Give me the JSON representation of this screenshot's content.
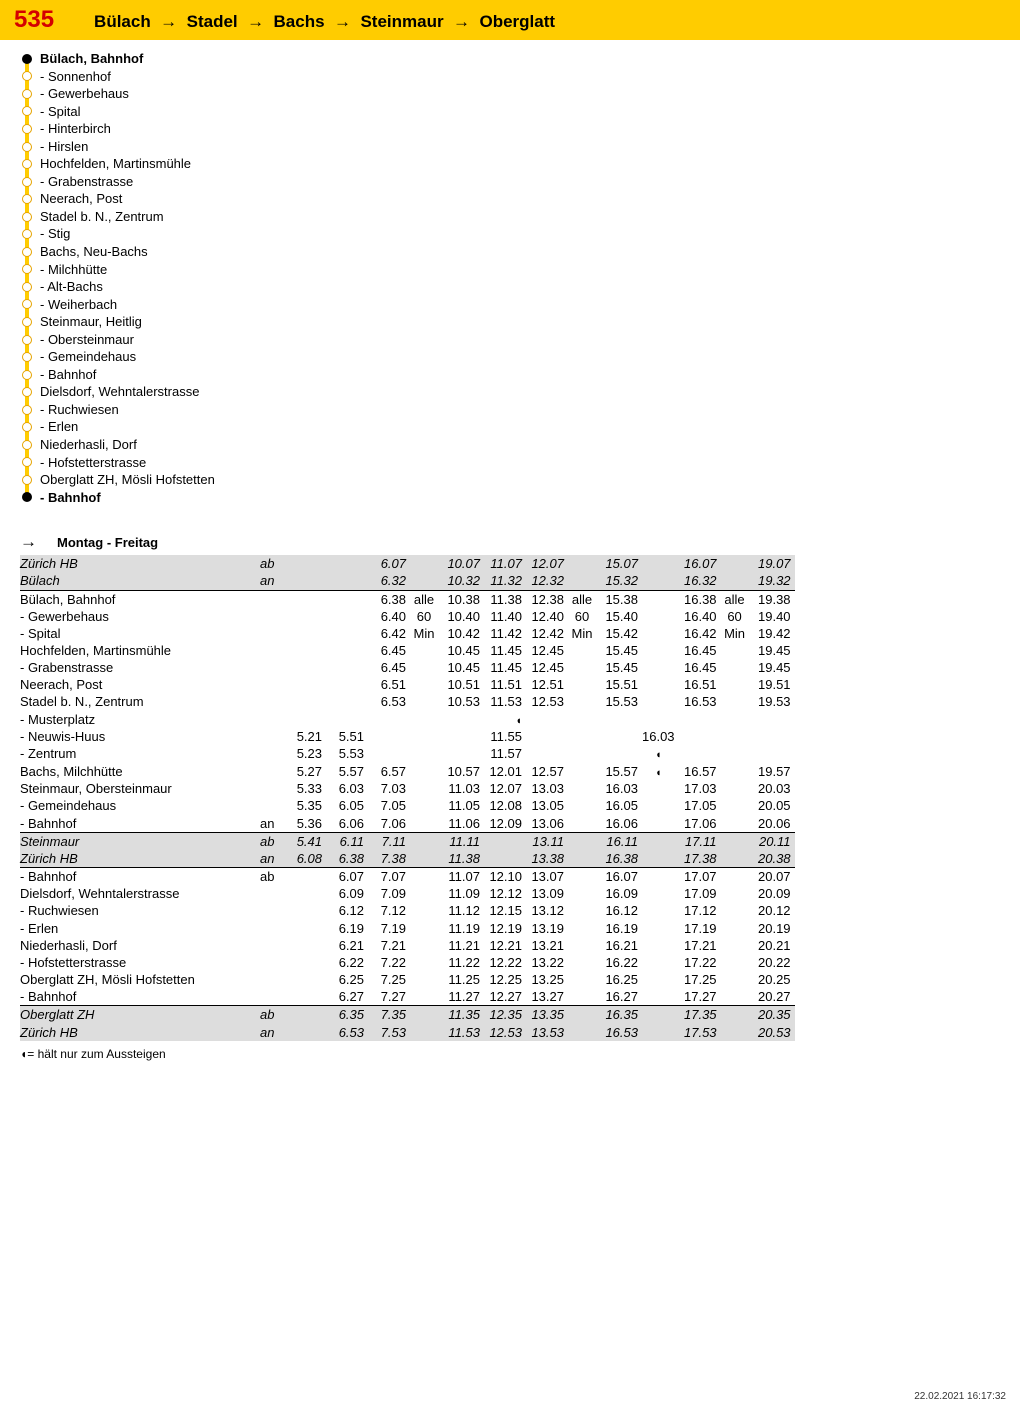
{
  "header": {
    "route_number": "535",
    "route_path": "Bülach  →  Stadel  →  Bachs  →  Steinmaur  →  Oberglatt"
  },
  "stops": [
    {
      "label": "Bülach, Bahnhof",
      "bold": true,
      "terminal": true
    },
    {
      "label": "- Sonnenhof"
    },
    {
      "label": "- Gewerbehaus"
    },
    {
      "label": "- Spital"
    },
    {
      "label": "- Hinterbirch"
    },
    {
      "label": "- Hirslen"
    },
    {
      "label": "Hochfelden, Martinsmühle"
    },
    {
      "label": "- Grabenstrasse"
    },
    {
      "label": "Neerach, Post"
    },
    {
      "label": "Stadel b. N., Zentrum"
    },
    {
      "label": "- Stig"
    },
    {
      "label": "Bachs, Neu-Bachs"
    },
    {
      "label": "- Milchhütte"
    },
    {
      "label": "- Alt-Bachs"
    },
    {
      "label": "- Weiherbach"
    },
    {
      "label": "Steinmaur, Heitlig"
    },
    {
      "label": "- Obersteinmaur"
    },
    {
      "label": "- Gemeindehaus"
    },
    {
      "label": "- Bahnhof"
    },
    {
      "label": "Dielsdorf, Wehntalerstrasse"
    },
    {
      "label": "- Ruchwiesen"
    },
    {
      "label": "- Erlen"
    },
    {
      "label": "Niederhasli, Dorf"
    },
    {
      "label": "- Hofstetterstrasse"
    },
    {
      "label": "Oberglatt ZH, Mösli Hofstetten"
    },
    {
      "label": "- Bahnhof",
      "bold": true,
      "terminal": true
    }
  ],
  "section": {
    "arrow": "→",
    "title": "Montag - Freitag"
  },
  "columns": [
    {
      "type": "stop"
    },
    {
      "type": "suffix"
    },
    {
      "type": "time"
    },
    {
      "type": "time"
    },
    {
      "type": "time"
    },
    {
      "type": "notes"
    },
    {
      "type": "time"
    },
    {
      "type": "time"
    },
    {
      "type": "time"
    },
    {
      "type": "notes"
    },
    {
      "type": "time"
    },
    {
      "type": "notes"
    },
    {
      "type": "time"
    },
    {
      "type": "notes"
    },
    {
      "type": "time"
    }
  ],
  "rows": [
    {
      "grey": true,
      "italic": true,
      "cells": [
        "Zürich HB",
        "ab",
        "",
        "",
        "6.07",
        "",
        "10.07",
        "11.07",
        "12.07",
        "",
        "15.07",
        "",
        "16.07",
        "",
        "19.07"
      ]
    },
    {
      "grey": true,
      "italic": true,
      "cells": [
        "Bülach",
        "an",
        "",
        "",
        "6.32",
        "",
        "10.32",
        "11.32",
        "12.32",
        "",
        "15.32",
        "",
        "16.32",
        "",
        "19.32"
      ]
    },
    {
      "sep": true,
      "cells": [
        "Bülach, Bahnhof",
        "",
        "",
        "",
        "6.38",
        "alle",
        "10.38",
        "11.38",
        "12.38",
        "alle",
        "15.38",
        "",
        "16.38",
        "alle",
        "19.38"
      ]
    },
    {
      "cells": [
        "- Gewerbehaus",
        "",
        "",
        "",
        "6.40",
        "60",
        "10.40",
        "11.40",
        "12.40",
        "60",
        "15.40",
        "",
        "16.40",
        "60",
        "19.40"
      ]
    },
    {
      "cells": [
        "- Spital",
        "",
        "",
        "",
        "6.42",
        "Min",
        "10.42",
        "11.42",
        "12.42",
        "Min",
        "15.42",
        "",
        "16.42",
        "Min",
        "19.42"
      ]
    },
    {
      "cells": [
        "Hochfelden, Martinsmühle",
        "",
        "",
        "",
        "6.45",
        "",
        "10.45",
        "11.45",
        "12.45",
        "",
        "15.45",
        "",
        "16.45",
        "",
        "19.45"
      ]
    },
    {
      "cells": [
        "- Grabenstrasse",
        "",
        "",
        "",
        "6.45",
        "",
        "10.45",
        "11.45",
        "12.45",
        "",
        "15.45",
        "",
        "16.45",
        "",
        "19.45"
      ]
    },
    {
      "cells": [
        "Neerach, Post",
        "",
        "",
        "",
        "6.51",
        "",
        "10.51",
        "11.51",
        "12.51",
        "",
        "15.51",
        "",
        "16.51",
        "",
        "19.51"
      ]
    },
    {
      "cells": [
        "Stadel b. N., Zentrum",
        "",
        "",
        "",
        "6.53",
        "",
        "10.53",
        "11.53",
        "12.53",
        "",
        "15.53",
        "",
        "16.53",
        "",
        "19.53"
      ]
    },
    {
      "cells": [
        "- Musterplatz",
        "",
        "",
        "",
        "",
        "",
        "",
        "◖",
        "",
        "",
        "",
        "",
        "",
        "",
        ""
      ]
    },
    {
      "cells": [
        "- Neuwis-Huus",
        "",
        "5.21",
        "5.51",
        "",
        "",
        "",
        "11.55",
        "",
        "",
        "",
        "16.03",
        "",
        "",
        ""
      ]
    },
    {
      "cells": [
        "- Zentrum",
        "",
        "5.23",
        "5.53",
        "",
        "",
        "",
        "11.57",
        "",
        "",
        "",
        "◖",
        "",
        "",
        ""
      ]
    },
    {
      "cells": [
        "Bachs, Milchhütte",
        "",
        "5.27",
        "5.57",
        "6.57",
        "",
        "10.57",
        "12.01",
        "12.57",
        "",
        "15.57",
        "◖",
        "16.57",
        "",
        "19.57"
      ]
    },
    {
      "cells": [
        "Steinmaur, Obersteinmaur",
        "",
        "5.33",
        "6.03",
        "7.03",
        "",
        "11.03",
        "12.07",
        "13.03",
        "",
        "16.03",
        "",
        "17.03",
        "",
        "20.03"
      ]
    },
    {
      "cells": [
        "- Gemeindehaus",
        "",
        "5.35",
        "6.05",
        "7.05",
        "",
        "11.05",
        "12.08",
        "13.05",
        "",
        "16.05",
        "",
        "17.05",
        "",
        "20.05"
      ]
    },
    {
      "cells": [
        "- Bahnhof",
        "an",
        "5.36",
        "6.06",
        "7.06",
        "",
        "11.06",
        "12.09",
        "13.06",
        "",
        "16.06",
        "",
        "17.06",
        "",
        "20.06"
      ]
    },
    {
      "grey": true,
      "italic": true,
      "sep": true,
      "cells": [
        "Steinmaur",
        "ab",
        "5.41",
        "6.11",
        "7.11",
        "",
        "11.11",
        "",
        "13.11",
        "",
        "16.11",
        "",
        "17.11",
        "",
        "20.11"
      ]
    },
    {
      "grey": true,
      "italic": true,
      "cells": [
        "Zürich HB",
        "an",
        "6.08",
        "6.38",
        "7.38",
        "",
        "11.38",
        "",
        "13.38",
        "",
        "16.38",
        "",
        "17.38",
        "",
        "20.38"
      ]
    },
    {
      "sep": true,
      "cells": [
        "- Bahnhof",
        "ab",
        "",
        "6.07",
        "7.07",
        "",
        "11.07",
        "12.10",
        "13.07",
        "",
        "16.07",
        "",
        "17.07",
        "",
        "20.07"
      ]
    },
    {
      "cells": [
        "Dielsdorf, Wehntalerstrasse",
        "",
        "",
        "6.09",
        "7.09",
        "",
        "11.09",
        "12.12",
        "13.09",
        "",
        "16.09",
        "",
        "17.09",
        "",
        "20.09"
      ]
    },
    {
      "cells": [
        "- Ruchwiesen",
        "",
        "",
        "6.12",
        "7.12",
        "",
        "11.12",
        "12.15",
        "13.12",
        "",
        "16.12",
        "",
        "17.12",
        "",
        "20.12"
      ]
    },
    {
      "cells": [
        "- Erlen",
        "",
        "",
        "6.19",
        "7.19",
        "",
        "11.19",
        "12.19",
        "13.19",
        "",
        "16.19",
        "",
        "17.19",
        "",
        "20.19"
      ]
    },
    {
      "cells": [
        "Niederhasli, Dorf",
        "",
        "",
        "6.21",
        "7.21",
        "",
        "11.21",
        "12.21",
        "13.21",
        "",
        "16.21",
        "",
        "17.21",
        "",
        "20.21"
      ]
    },
    {
      "cells": [
        "- Hofstetterstrasse",
        "",
        "",
        "6.22",
        "7.22",
        "",
        "11.22",
        "12.22",
        "13.22",
        "",
        "16.22",
        "",
        "17.22",
        "",
        "20.22"
      ]
    },
    {
      "cells": [
        "Oberglatt ZH, Mösli Hofstetten",
        "",
        "",
        "6.25",
        "7.25",
        "",
        "11.25",
        "12.25",
        "13.25",
        "",
        "16.25",
        "",
        "17.25",
        "",
        "20.25"
      ]
    },
    {
      "cells": [
        "- Bahnhof",
        "",
        "",
        "6.27",
        "7.27",
        "",
        "11.27",
        "12.27",
        "13.27",
        "",
        "16.27",
        "",
        "17.27",
        "",
        "20.27"
      ]
    },
    {
      "grey": true,
      "italic": true,
      "sep": true,
      "cells": [
        "Oberglatt ZH",
        "ab",
        "",
        "6.35",
        "7.35",
        "",
        "11.35",
        "12.35",
        "13.35",
        "",
        "16.35",
        "",
        "17.35",
        "",
        "20.35"
      ]
    },
    {
      "grey": true,
      "italic": true,
      "cells": [
        "Zürich HB",
        "an",
        "",
        "6.53",
        "7.53",
        "",
        "11.53",
        "12.53",
        "13.53",
        "",
        "16.53",
        "",
        "17.53",
        "",
        "20.53"
      ]
    }
  ],
  "footnote": "◖= hält nur zum Aussteigen",
  "timestamp": "22.02.2021 16:17:32"
}
